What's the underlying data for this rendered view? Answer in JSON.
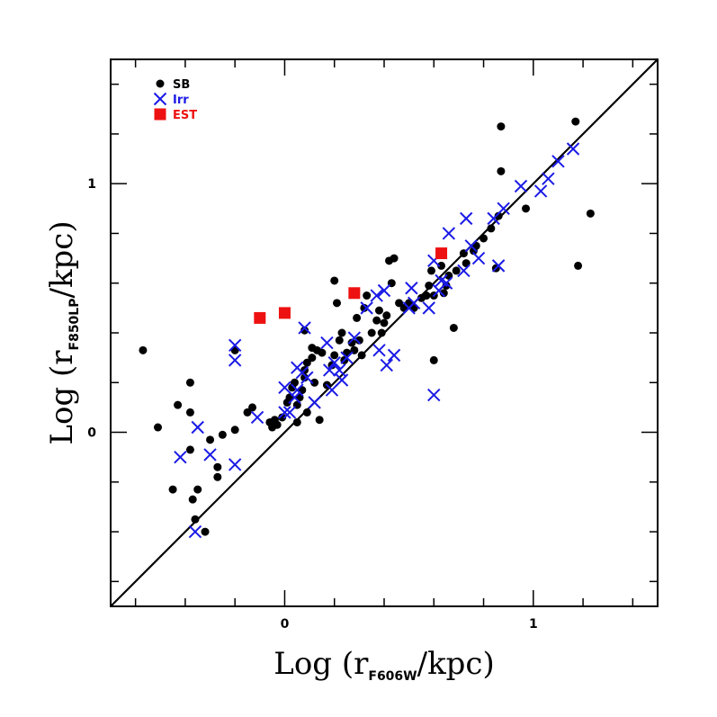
{
  "chart_data": {
    "type": "scatter",
    "title": "",
    "xlabel": {
      "prefix": "Log (r",
      "subscript": "F606W",
      "suffix": "/kpc)"
    },
    "ylabel": {
      "prefix": "Log (r",
      "subscript": "F850LP",
      "suffix": "/kpc)"
    },
    "xlim": [
      -0.7,
      1.5
    ],
    "ylim": [
      -0.7,
      1.5
    ],
    "xticks": [
      {
        "value": 0,
        "label": "0"
      },
      {
        "value": 1,
        "label": "1"
      }
    ],
    "yticks": [
      {
        "value": 0,
        "label": "0"
      },
      {
        "value": 1,
        "label": "1"
      }
    ],
    "minor_tick_step": 0.2,
    "grid": false,
    "legend_position": "top-left",
    "reference_line": {
      "type": "identity",
      "from": [
        -0.7,
        -0.7
      ],
      "to": [
        1.5,
        1.5
      ]
    },
    "series": [
      {
        "name": "SB",
        "marker": "circle",
        "color": "#000000",
        "points": [
          [
            -0.57,
            0.33
          ],
          [
            -0.51,
            0.02
          ],
          [
            -0.45,
            -0.23
          ],
          [
            -0.43,
            0.11
          ],
          [
            -0.38,
            0.08
          ],
          [
            -0.38,
            0.2
          ],
          [
            -0.38,
            -0.07
          ],
          [
            -0.37,
            -0.27
          ],
          [
            -0.36,
            -0.35
          ],
          [
            -0.35,
            -0.23
          ],
          [
            -0.32,
            -0.4
          ],
          [
            -0.3,
            -0.03
          ],
          [
            -0.27,
            -0.18
          ],
          [
            -0.27,
            -0.14
          ],
          [
            -0.25,
            -0.01
          ],
          [
            -0.2,
            0.33
          ],
          [
            -0.2,
            0.01
          ],
          [
            -0.15,
            0.08
          ],
          [
            -0.13,
            0.1
          ],
          [
            -0.06,
            0.04
          ],
          [
            -0.05,
            0.02
          ],
          [
            -0.04,
            0.05
          ],
          [
            -0.03,
            0.03
          ],
          [
            -0.01,
            0.06
          ],
          [
            0.01,
            0.12
          ],
          [
            0.02,
            0.14
          ],
          [
            0.03,
            0.18
          ],
          [
            0.04,
            0.2
          ],
          [
            0.05,
            0.11
          ],
          [
            0.05,
            0.04
          ],
          [
            0.06,
            0.14
          ],
          [
            0.07,
            0.17
          ],
          [
            0.08,
            0.22
          ],
          [
            0.08,
            0.25
          ],
          [
            0.08,
            0.41
          ],
          [
            0.09,
            0.28
          ],
          [
            0.09,
            0.08
          ],
          [
            0.11,
            0.3
          ],
          [
            0.11,
            0.34
          ],
          [
            0.12,
            0.2
          ],
          [
            0.13,
            0.33
          ],
          [
            0.14,
            0.05
          ],
          [
            0.15,
            0.32
          ],
          [
            0.17,
            0.19
          ],
          [
            0.19,
            0.27
          ],
          [
            0.2,
            0.61
          ],
          [
            0.2,
            0.31
          ],
          [
            0.21,
            0.52
          ],
          [
            0.22,
            0.37
          ],
          [
            0.23,
            0.4
          ],
          [
            0.24,
            0.29
          ],
          [
            0.25,
            0.32
          ],
          [
            0.27,
            0.36
          ],
          [
            0.28,
            0.33
          ],
          [
            0.29,
            0.46
          ],
          [
            0.3,
            0.37
          ],
          [
            0.31,
            0.31
          ],
          [
            0.32,
            0.5
          ],
          [
            0.33,
            0.55
          ],
          [
            0.35,
            0.4
          ],
          [
            0.37,
            0.45
          ],
          [
            0.38,
            0.49
          ],
          [
            0.39,
            0.4
          ],
          [
            0.4,
            0.44
          ],
          [
            0.41,
            0.47
          ],
          [
            0.42,
            0.69
          ],
          [
            0.43,
            0.6
          ],
          [
            0.44,
            0.7
          ],
          [
            0.46,
            0.52
          ],
          [
            0.48,
            0.5
          ],
          [
            0.5,
            0.52
          ],
          [
            0.52,
            0.5
          ],
          [
            0.55,
            0.54
          ],
          [
            0.57,
            0.55
          ],
          [
            0.58,
            0.59
          ],
          [
            0.59,
            0.65
          ],
          [
            0.6,
            0.55
          ],
          [
            0.6,
            0.29
          ],
          [
            0.63,
            0.67
          ],
          [
            0.64,
            0.56
          ],
          [
            0.65,
            0.59
          ],
          [
            0.66,
            0.63
          ],
          [
            0.68,
            0.42
          ],
          [
            0.69,
            0.65
          ],
          [
            0.72,
            0.72
          ],
          [
            0.73,
            0.68
          ],
          [
            0.76,
            0.73
          ],
          [
            0.77,
            0.75
          ],
          [
            0.8,
            0.78
          ],
          [
            0.83,
            0.82
          ],
          [
            0.85,
            0.66
          ],
          [
            0.86,
            0.87
          ],
          [
            0.87,
            1.23
          ],
          [
            0.87,
            1.05
          ],
          [
            0.97,
            0.9
          ],
          [
            1.17,
            1.25
          ],
          [
            1.18,
            0.67
          ],
          [
            1.23,
            0.88
          ]
        ]
      },
      {
        "name": "Irr",
        "marker": "x",
        "color": "#1a1ae6",
        "points": [
          [
            -0.42,
            -0.1
          ],
          [
            -0.35,
            0.02
          ],
          [
            -0.36,
            -0.4
          ],
          [
            -0.3,
            -0.09
          ],
          [
            -0.2,
            -0.13
          ],
          [
            -0.2,
            0.29
          ],
          [
            -0.2,
            0.35
          ],
          [
            -0.11,
            0.06
          ],
          [
            0.0,
            0.18
          ],
          [
            0.0,
            0.08
          ],
          [
            0.02,
            0.08
          ],
          [
            0.04,
            0.14
          ],
          [
            0.05,
            0.17
          ],
          [
            0.05,
            0.26
          ],
          [
            0.07,
            0.24
          ],
          [
            0.08,
            0.42
          ],
          [
            0.09,
            0.22
          ],
          [
            0.12,
            0.12
          ],
          [
            0.17,
            0.36
          ],
          [
            0.18,
            0.25
          ],
          [
            0.19,
            0.17
          ],
          [
            0.2,
            0.28
          ],
          [
            0.22,
            0.25
          ],
          [
            0.23,
            0.21
          ],
          [
            0.25,
            0.3
          ],
          [
            0.28,
            0.38
          ],
          [
            0.33,
            0.5
          ],
          [
            0.37,
            0.55
          ],
          [
            0.38,
            0.33
          ],
          [
            0.4,
            0.57
          ],
          [
            0.41,
            0.27
          ],
          [
            0.44,
            0.31
          ],
          [
            0.5,
            0.5
          ],
          [
            0.52,
            0.52
          ],
          [
            0.51,
            0.58
          ],
          [
            0.58,
            0.5
          ],
          [
            0.6,
            0.15
          ],
          [
            0.62,
            0.57
          ],
          [
            0.6,
            0.69
          ],
          [
            0.63,
            0.61
          ],
          [
            0.66,
            0.8
          ],
          [
            0.65,
            0.6
          ],
          [
            0.72,
            0.65
          ],
          [
            0.73,
            0.86
          ],
          [
            0.75,
            0.75
          ],
          [
            0.78,
            0.7
          ],
          [
            0.84,
            0.86
          ],
          [
            0.86,
            0.67
          ],
          [
            0.88,
            0.9
          ],
          [
            0.95,
            0.99
          ],
          [
            1.03,
            0.97
          ],
          [
            1.06,
            1.02
          ],
          [
            1.1,
            1.09
          ],
          [
            1.16,
            1.14
          ]
        ]
      },
      {
        "name": "EST",
        "marker": "square",
        "color": "#ee1111",
        "points": [
          [
            -0.1,
            0.46
          ],
          [
            0.0,
            0.48
          ],
          [
            0.28,
            0.56
          ],
          [
            0.63,
            0.72
          ]
        ]
      }
    ]
  }
}
